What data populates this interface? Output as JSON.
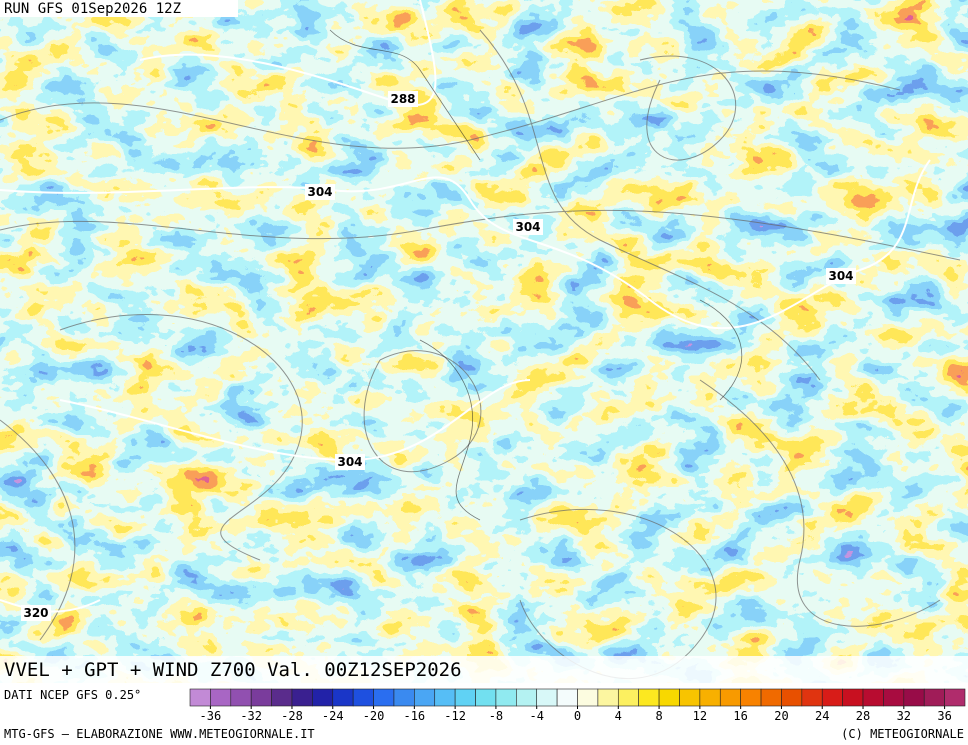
{
  "header": {
    "run": "RUN GFS 01Sep2026 12Z"
  },
  "contour_labels": [
    "288",
    "304",
    "304",
    "304",
    "304",
    "320"
  ],
  "footer": {
    "title": "VVEL + GPT + WIND Z700 Val. 00Z12SEP2026",
    "source": "DATI NCEP GFS 0.25°",
    "credit_left": "MTG-GFS — ELABORAZIONE WWW.METEOGIORNALE.IT",
    "credit_right": "(C) METEOGIORNALE"
  },
  "colorbar": {
    "range": [
      -38,
      38
    ],
    "ticks": [
      -36,
      -32,
      -28,
      -24,
      -20,
      -16,
      -12,
      -8,
      -4,
      0,
      4,
      8,
      12,
      16,
      20,
      24,
      28,
      32,
      36
    ],
    "colors": [
      "#c28ad6",
      "#a866c4",
      "#9150b0",
      "#7a3c9c",
      "#5a2c8c",
      "#3a2090",
      "#2222a8",
      "#1a36c8",
      "#1e50e0",
      "#2a6ef0",
      "#3a8af0",
      "#4aa6f4",
      "#56bef6",
      "#60d2f4",
      "#72e0f0",
      "#90eaf0",
      "#b4f2f2",
      "#d8f8f8",
      "#f4fcfc",
      "#fcfce0",
      "#fcf6a0",
      "#fcf060",
      "#fce820",
      "#f8d800",
      "#f8c400",
      "#f8b000",
      "#f89a00",
      "#f88200",
      "#f06a00",
      "#e85000",
      "#e03410",
      "#d81c18",
      "#c81020",
      "#b80c30",
      "#a80c40",
      "#980c48",
      "#a01c58",
      "#b02c6c"
    ]
  }
}
